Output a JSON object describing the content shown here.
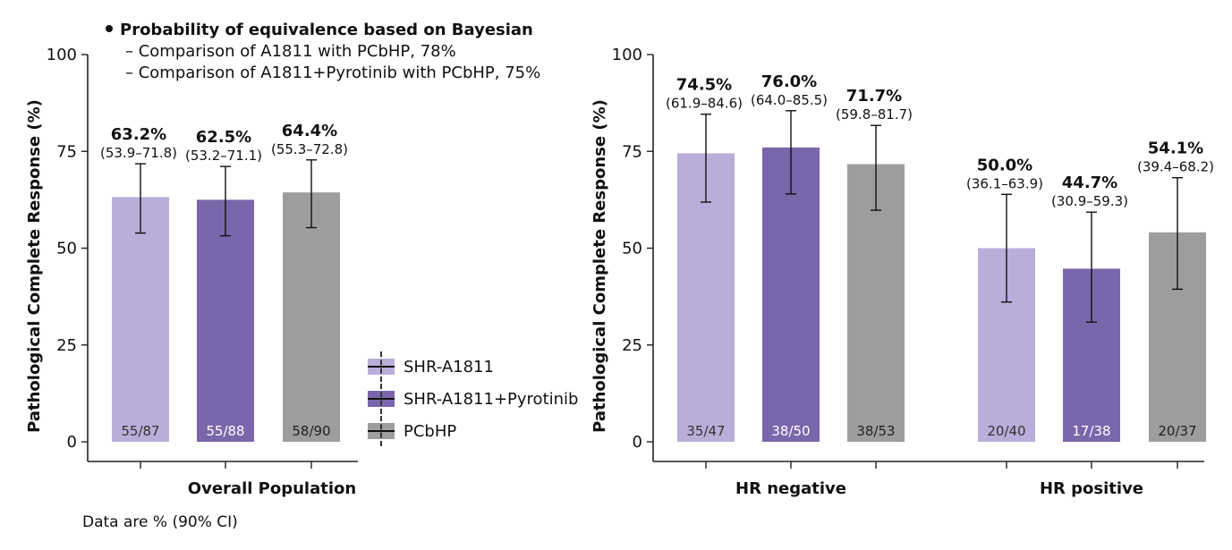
{
  "colors": {
    "shr": "#b9aed9",
    "pyro": "#7b66ab",
    "pcbhp": "#9d9d9d"
  },
  "bayesian_note": {
    "heading": "Probability of equivalence based on Bayesian",
    "lines": [
      "– Comparison of A1811 with PCbHP, 78%",
      "– Comparison of A1811+Pyrotinib with PCbHP, 75%"
    ]
  },
  "legend": {
    "items": [
      {
        "label": "SHR-A1811",
        "color_key": "shr"
      },
      {
        "label": "SHR-A1811+Pyrotinib",
        "color_key": "pyro"
      },
      {
        "label": "PCbHP",
        "color_key": "pcbhp"
      }
    ]
  },
  "footnote": "Data are % (90% CI)",
  "chart_data": [
    {
      "type": "bar",
      "ylabel": "Pathological Complete Response (%)",
      "ylim": [
        0,
        100
      ],
      "yticks": [
        0,
        25,
        50,
        75,
        100
      ],
      "groups": [
        {
          "name": "Overall Population",
          "bars": [
            {
              "series": "SHR-A1811",
              "color_key": "shr",
              "value": 63.2,
              "label": "63.2%",
              "ci": [
                53.9,
                71.8
              ],
              "ci_label": "(53.9–71.8)",
              "n_label": "55/87",
              "n_color": "#333333"
            },
            {
              "series": "SHR-A1811+Pyrotinib",
              "color_key": "pyro",
              "value": 62.5,
              "label": "62.5%",
              "ci": [
                53.2,
                71.1
              ],
              "ci_label": "(53.2–71.1)",
              "n_label": "55/88",
              "n_color": "#ffffff"
            },
            {
              "series": "PCbHP",
              "color_key": "pcbhp",
              "value": 64.4,
              "label": "64.4%",
              "ci": [
                55.3,
                72.8
              ],
              "ci_label": "(55.3–72.8)",
              "n_label": "58/90",
              "n_color": "#222222"
            }
          ]
        }
      ]
    },
    {
      "type": "bar",
      "ylabel": "Pathological Complete Response (%)",
      "ylim": [
        0,
        100
      ],
      "yticks": [
        0,
        25,
        50,
        75,
        100
      ],
      "groups": [
        {
          "name": "HR negative",
          "bars": [
            {
              "series": "SHR-A1811",
              "color_key": "shr",
              "value": 74.5,
              "label": "74.5%",
              "ci": [
                61.9,
                84.6
              ],
              "ci_label": "(61.9–84.6)",
              "n_label": "35/47",
              "n_color": "#333333"
            },
            {
              "series": "SHR-A1811+Pyrotinib",
              "color_key": "pyro",
              "value": 76.0,
              "label": "76.0%",
              "ci": [
                64.0,
                85.5
              ],
              "ci_label": "(64.0–85.5)",
              "n_label": "38/50",
              "n_color": "#ffffff"
            },
            {
              "series": "PCbHP",
              "color_key": "pcbhp",
              "value": 71.7,
              "label": "71.7%",
              "ci": [
                59.8,
                81.7
              ],
              "ci_label": "(59.8–81.7)",
              "n_label": "38/53",
              "n_color": "#222222"
            }
          ]
        },
        {
          "name": "HR positive",
          "bars": [
            {
              "series": "SHR-A1811",
              "color_key": "shr",
              "value": 50.0,
              "label": "50.0%",
              "ci": [
                36.1,
                63.9
              ],
              "ci_label": "(36.1–63.9)",
              "n_label": "20/40",
              "n_color": "#333333"
            },
            {
              "series": "SHR-A1811+Pyrotinib",
              "color_key": "pyro",
              "value": 44.7,
              "label": "44.7%",
              "ci": [
                30.9,
                59.3
              ],
              "ci_label": "(30.9–59.3)",
              "n_label": "17/38",
              "n_color": "#ffffff"
            },
            {
              "series": "PCbHP",
              "color_key": "pcbhp",
              "value": 54.1,
              "label": "54.1%",
              "ci": [
                39.4,
                68.2
              ],
              "ci_label": "(39.4–68.2)",
              "n_label": "20/37",
              "n_color": "#222222"
            }
          ]
        }
      ]
    }
  ]
}
